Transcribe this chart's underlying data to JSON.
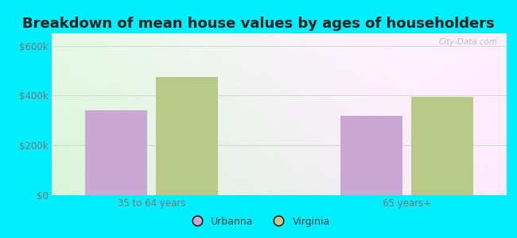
{
  "title": "Breakdown of mean house values by ages of householders",
  "categories": [
    "35 to 64 years",
    "65 years+"
  ],
  "urbanna_values": [
    340000,
    320000
  ],
  "virginia_values": [
    475000,
    395000
  ],
  "urbanna_color": "#c9a8d4",
  "virginia_color": "#b8c98a",
  "background_outer": "#00eeff",
  "yticks": [
    0,
    200000,
    400000,
    600000
  ],
  "ytick_labels": [
    "$0",
    "$200k",
    "$400k",
    "$600k"
  ],
  "ylim": [
    0,
    650000
  ],
  "legend_labels": [
    "Urbanna",
    "Virginia"
  ],
  "watermark": "City-Data.com",
  "bar_width": 0.28,
  "group_positions": [
    0.55,
    1.7
  ],
  "title_fontsize": 13,
  "tick_fontsize": 8.5,
  "legend_fontsize": 9,
  "xlim": [
    0.1,
    2.15
  ]
}
